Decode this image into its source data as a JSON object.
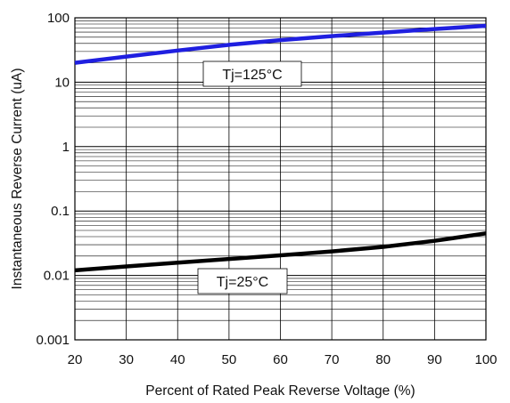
{
  "chart_data": {
    "type": "line",
    "xlabel": "Percent of Rated Peak Reverse Voltage (%)",
    "ylabel": "Instantaneous Reverse Current (uA)",
    "xlim": [
      20,
      100
    ],
    "ylim": [
      0.001,
      100
    ],
    "yscale": "log",
    "grid": true,
    "x_ticks": [
      "20",
      "30",
      "40",
      "50",
      "60",
      "70",
      "80",
      "90",
      "100"
    ],
    "y_ticks": [
      "0.001",
      "0.01",
      "0.1",
      "1",
      "10",
      "100"
    ],
    "series": [
      {
        "name": "Tj=125°C",
        "color": "#1f1fe0",
        "x": [
          20,
          30,
          40,
          50,
          60,
          70,
          80,
          90,
          100
        ],
        "y": [
          20,
          25,
          31,
          38,
          45,
          52,
          59,
          67,
          75
        ]
      },
      {
        "name": "Tj=25°C",
        "color": "#000000",
        "x": [
          20,
          30,
          40,
          50,
          60,
          70,
          80,
          90,
          100
        ],
        "y": [
          0.012,
          0.0138,
          0.0158,
          0.018,
          0.0205,
          0.0236,
          0.0278,
          0.0345,
          0.045
        ]
      }
    ],
    "annotations": [
      {
        "text": "Tj=125°C",
        "series": 0
      },
      {
        "text": "Tj=25°C",
        "series": 1
      }
    ]
  }
}
